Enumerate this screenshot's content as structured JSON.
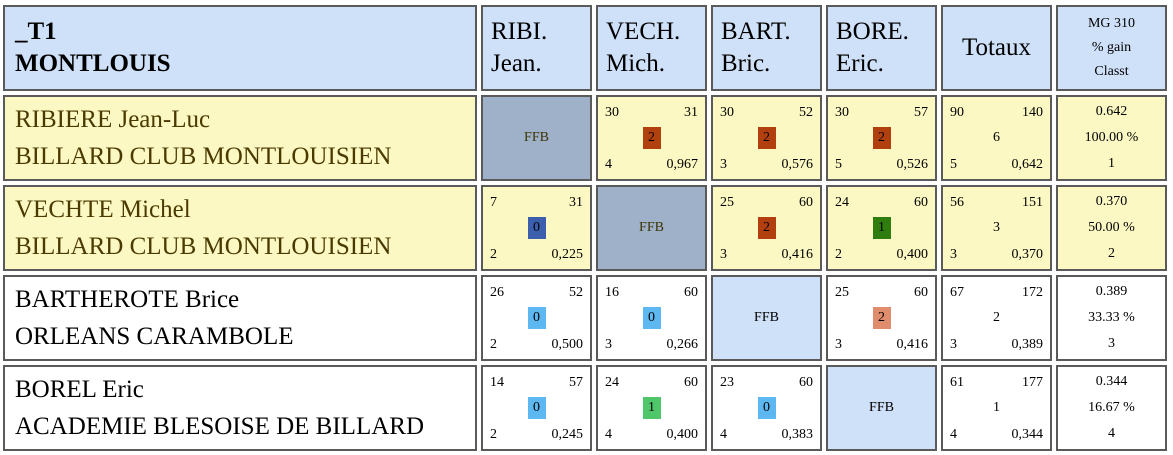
{
  "header": {
    "title_line1": "_T1",
    "title_line2": "MONTLOUIS",
    "columns": [
      {
        "line1": "RIBI.",
        "line2": "Jean."
      },
      {
        "line1": "VECH.",
        "line2": "Mich."
      },
      {
        "line1": "BART.",
        "line2": "Bric."
      },
      {
        "line1": "BORE.",
        "line2": "Eric."
      }
    ],
    "totaux": "Totaux",
    "mg_line1": "MG 310",
    "mg_line2": "% gain",
    "mg_line3": "Classt"
  },
  "colors": {
    "header_bg": "#cfe0f9",
    "yellow_row_bg": "#fbf8c3",
    "ffb_dark_bg": "#9fb0c9",
    "score_win": "#b2400f",
    "score_draw_dark": "#2e7d0e",
    "score_loss_dark": "#3b5fad",
    "score_loss": "#5db7f0",
    "score_draw": "#4fc66a",
    "score_win_light": "#e08d6e"
  },
  "rows": [
    {
      "name": "RIBIERE Jean-Luc",
      "club": "BILLARD CLUB MONTLOUISIEN",
      "highlight": true,
      "cells": [
        {
          "ffb": "FFB"
        },
        {
          "tl": "30",
          "tr": "31",
          "mid": "2",
          "color": "#b2400f",
          "bl": "4",
          "br": "0,967"
        },
        {
          "tl": "30",
          "tr": "52",
          "mid": "2",
          "color": "#b2400f",
          "bl": "3",
          "br": "0,576"
        },
        {
          "tl": "30",
          "tr": "57",
          "mid": "2",
          "color": "#b2400f",
          "bl": "5",
          "br": "0,526"
        }
      ],
      "totaux": {
        "tl": "90",
        "tr": "140",
        "mid": "6",
        "bl": "5",
        "br": "0,642"
      },
      "mg": {
        "avg": "0.642",
        "pct": "100.00 %",
        "rank": "1"
      }
    },
    {
      "name": "VECHTE Michel",
      "club": "BILLARD CLUB MONTLOUISIEN",
      "highlight": true,
      "cells": [
        {
          "tl": "7",
          "tr": "31",
          "mid": "0",
          "color": "#3b5fad",
          "bl": "2",
          "br": "0,225"
        },
        {
          "ffb": "FFB"
        },
        {
          "tl": "25",
          "tr": "60",
          "mid": "2",
          "color": "#b2400f",
          "bl": "3",
          "br": "0,416"
        },
        {
          "tl": "24",
          "tr": "60",
          "mid": "1",
          "color": "#2e7d0e",
          "bl": "2",
          "br": "0,400"
        }
      ],
      "totaux": {
        "tl": "56",
        "tr": "151",
        "mid": "3",
        "bl": "3",
        "br": "0,370"
      },
      "mg": {
        "avg": "0.370",
        "pct": "50.00 %",
        "rank": "2"
      }
    },
    {
      "name": "BARTHEROTE Brice",
      "club": "ORLEANS CARAMBOLE",
      "highlight": false,
      "cells": [
        {
          "tl": "26",
          "tr": "52",
          "mid": "0",
          "color": "#5db7f0",
          "bl": "2",
          "br": "0,500"
        },
        {
          "tl": "16",
          "tr": "60",
          "mid": "0",
          "color": "#5db7f0",
          "bl": "3",
          "br": "0,266"
        },
        {
          "ffb": "FFB"
        },
        {
          "tl": "25",
          "tr": "60",
          "mid": "2",
          "color": "#e08d6e",
          "bl": "3",
          "br": "0,416"
        }
      ],
      "totaux": {
        "tl": "67",
        "tr": "172",
        "mid": "2",
        "bl": "3",
        "br": "0,389"
      },
      "mg": {
        "avg": "0.389",
        "pct": "33.33 %",
        "rank": "3"
      }
    },
    {
      "name": "BOREL Eric",
      "club": "ACADEMIE BLESOISE DE BILLARD",
      "highlight": false,
      "cells": [
        {
          "tl": "14",
          "tr": "57",
          "mid": "0",
          "color": "#5db7f0",
          "bl": "2",
          "br": "0,245"
        },
        {
          "tl": "24",
          "tr": "60",
          "mid": "1",
          "color": "#4fc66a",
          "bl": "4",
          "br": "0,400"
        },
        {
          "tl": "23",
          "tr": "60",
          "mid": "0",
          "color": "#5db7f0",
          "bl": "4",
          "br": "0,383"
        },
        {
          "ffb": "FFB"
        }
      ],
      "totaux": {
        "tl": "61",
        "tr": "177",
        "mid": "1",
        "bl": "4",
        "br": "0,344"
      },
      "mg": {
        "avg": "0.344",
        "pct": "16.67 %",
        "rank": "4"
      }
    }
  ]
}
